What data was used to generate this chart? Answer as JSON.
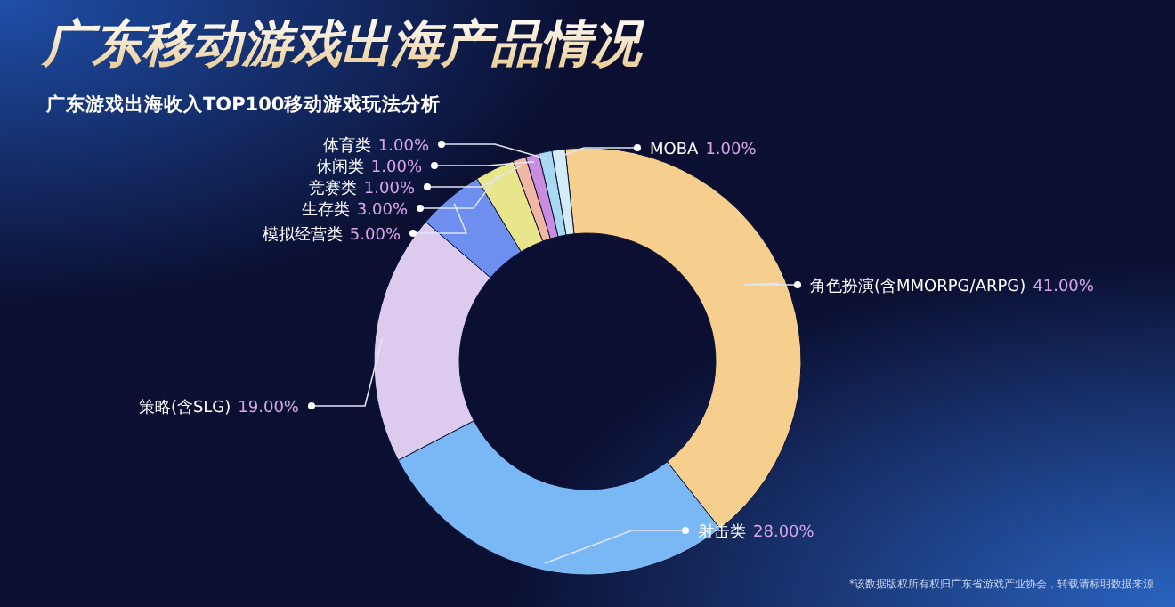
{
  "chart_data": {
    "type": "donut",
    "title": "广东移动游戏出海产品情况",
    "subtitle": "广东游戏出海收入TOP100移动游戏玩法分析",
    "categories": [
      "角色扮演(含MMORPG/ARPG)",
      "射击类",
      "策略(含SLG)",
      "模拟经营类",
      "生存类",
      "竞赛类",
      "休闲类",
      "体育类",
      "MOBA"
    ],
    "values": [
      41,
      28,
      19,
      5,
      3,
      1,
      1,
      1,
      1
    ],
    "value_labels": [
      "41.00%",
      "28.00%",
      "19.00%",
      "5.00%",
      "3.00%",
      "1.00%",
      "1.00%",
      "1.00%",
      "1.00%"
    ],
    "colors": [
      "#f6cf8e",
      "#7ab8f5",
      "#dccbee",
      "#6f8ff0",
      "#e8e58a",
      "#f2b7a3",
      "#c98de0",
      "#a9d8f2",
      "#d4ecf7"
    ],
    "annotations": [
      "*该数据版权所有权归广东省游戏产业协会，转载请标明数据来源"
    ]
  }
}
